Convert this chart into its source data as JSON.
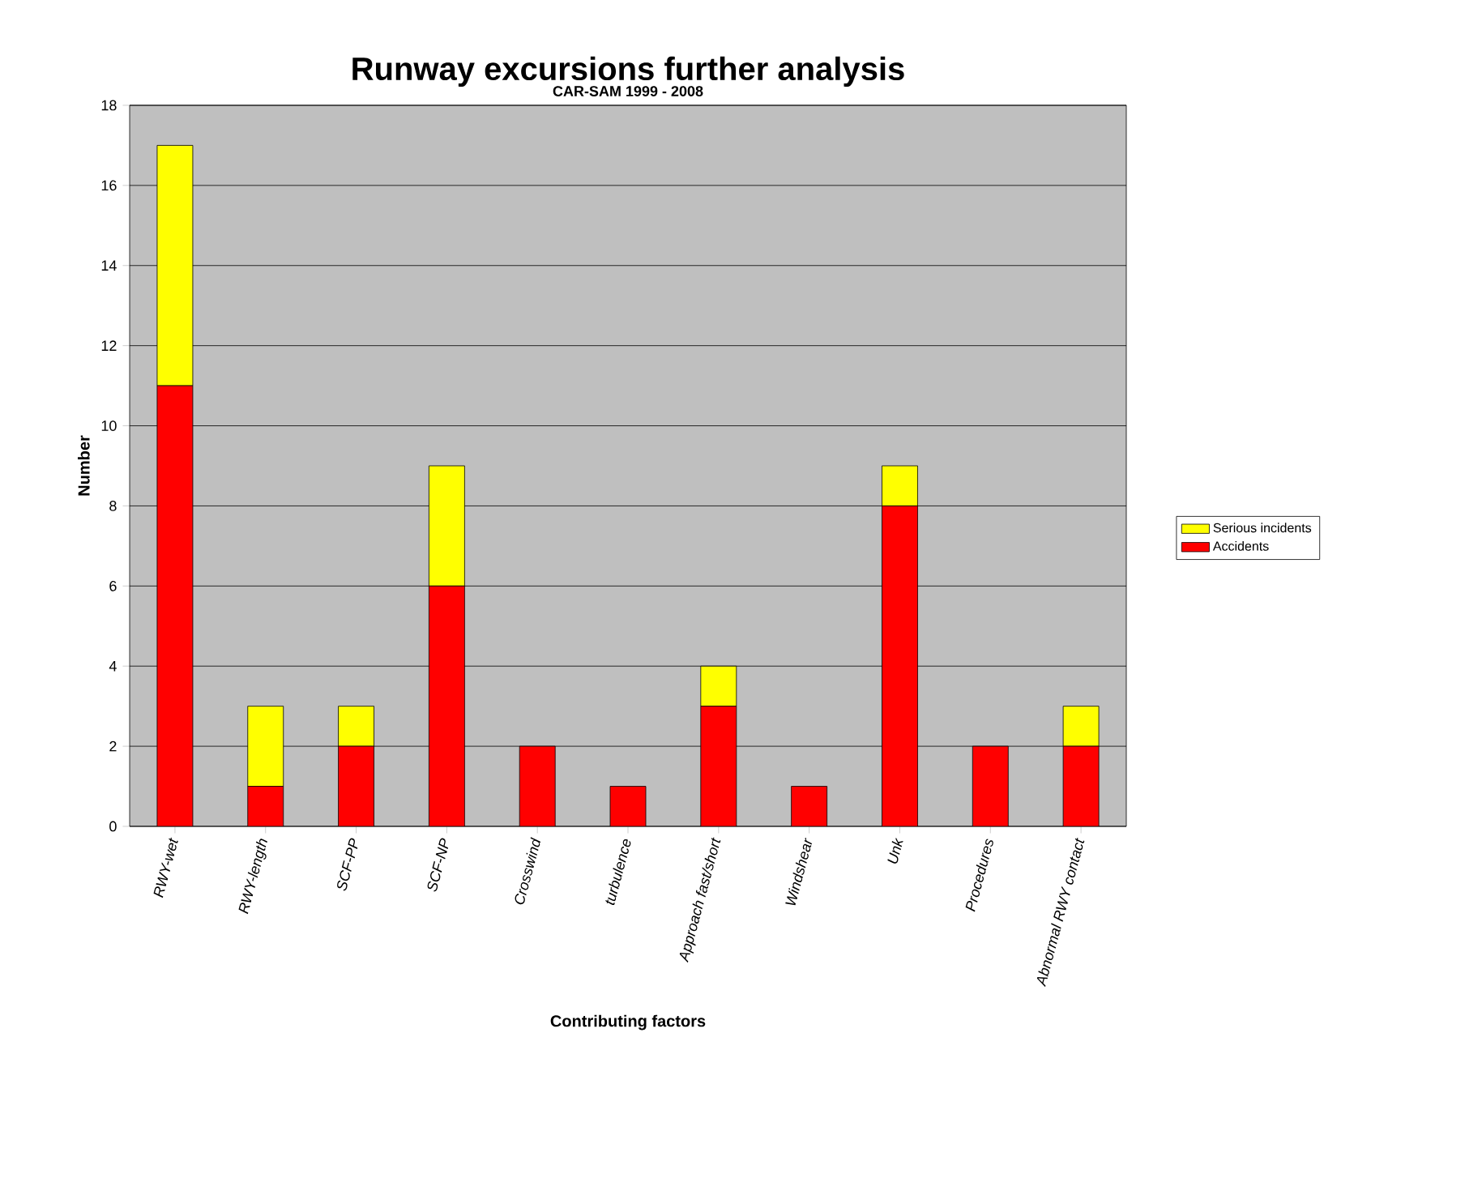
{
  "chart_data": {
    "type": "bar",
    "title": "Runway excursions further analysis",
    "subtitle": "CAR-SAM 1999 - 2008",
    "xlabel": "Contributing factors",
    "ylabel": "Number",
    "categories": [
      "RWY-wet",
      "RWY-length",
      "SCF-PP",
      "SCF-NP",
      "Crosswind",
      "turbulence",
      "Approach fast/short",
      "Windshear",
      "Unk",
      "Procedures",
      "Abnormal RWY contact"
    ],
    "stacked": true,
    "series": [
      {
        "name": "Accidents",
        "color": "#ff0000",
        "values": [
          11,
          1,
          2,
          6,
          2,
          1,
          3,
          1,
          8,
          2,
          2
        ]
      },
      {
        "name": "Serious incidents",
        "color": "#ffff00",
        "values": [
          6,
          2,
          1,
          3,
          0,
          0,
          1,
          0,
          1,
          0,
          1
        ]
      }
    ],
    "ylim": [
      0,
      18
    ],
    "yticks": [
      0,
      2,
      4,
      6,
      8,
      10,
      12,
      14,
      16,
      18
    ],
    "grid": "y",
    "legend": "right"
  }
}
